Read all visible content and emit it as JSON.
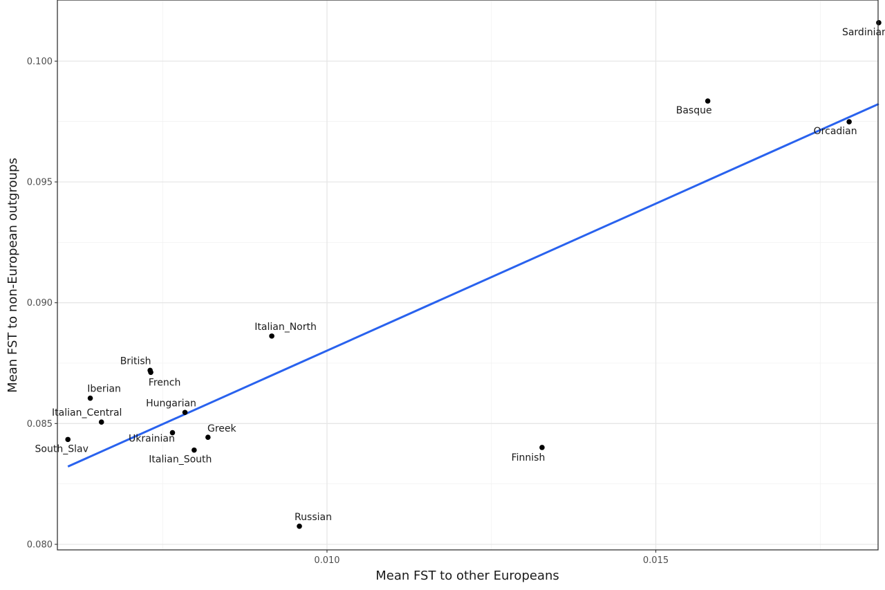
{
  "chart_data": {
    "type": "scatter",
    "title": "",
    "xlabel": "Mean FST to other Europeans",
    "ylabel": "Mean FST to non-European outgroups",
    "xlim": [
      0.0059,
      0.01838
    ],
    "ylim": [
      0.07977,
      0.10253
    ],
    "x_ticks": [
      0.01,
      0.015
    ],
    "x_tick_labels": [
      "0.010",
      "0.015"
    ],
    "y_ticks": [
      0.08,
      0.085,
      0.09,
      0.095,
      0.1
    ],
    "y_tick_labels": [
      "0.080",
      "0.085",
      "0.090",
      "0.095",
      "0.100"
    ],
    "grid": true,
    "points": [
      {
        "label": "Sardinian",
        "x": 0.01839,
        "y": 0.10159
      },
      {
        "label": "Basque",
        "x": 0.01579,
        "y": 0.09835
      },
      {
        "label": "Orcadian",
        "x": 0.01794,
        "y": 0.09749
      },
      {
        "label": "Italian_North",
        "x": 0.00916,
        "y": 0.08862
      },
      {
        "label": "British",
        "x": 0.00731,
        "y": 0.0872
      },
      {
        "label": "French",
        "x": 0.00732,
        "y": 0.08712
      },
      {
        "label": "Iberian",
        "x": 0.0064,
        "y": 0.08605
      },
      {
        "label": "Hungarian",
        "x": 0.00784,
        "y": 0.08546
      },
      {
        "label": "Italian_Central",
        "x": 0.00657,
        "y": 0.08506
      },
      {
        "label": "South_Slav",
        "x": 0.00606,
        "y": 0.08434
      },
      {
        "label": "Ukrainian",
        "x": 0.00765,
        "y": 0.08462
      },
      {
        "label": "Greek",
        "x": 0.00819,
        "y": 0.08443
      },
      {
        "label": "Italian_South",
        "x": 0.00798,
        "y": 0.0839
      },
      {
        "label": "Finnish",
        "x": 0.01327,
        "y": 0.08401
      },
      {
        "label": "Russian",
        "x": 0.00958,
        "y": 0.08075
      }
    ],
    "trend_line": {
      "type": "linear",
      "x": [
        0.00606,
        0.01839
      ],
      "y": [
        0.08322,
        0.09823
      ],
      "color": "#2962ee"
    },
    "point_color": "#000000"
  }
}
